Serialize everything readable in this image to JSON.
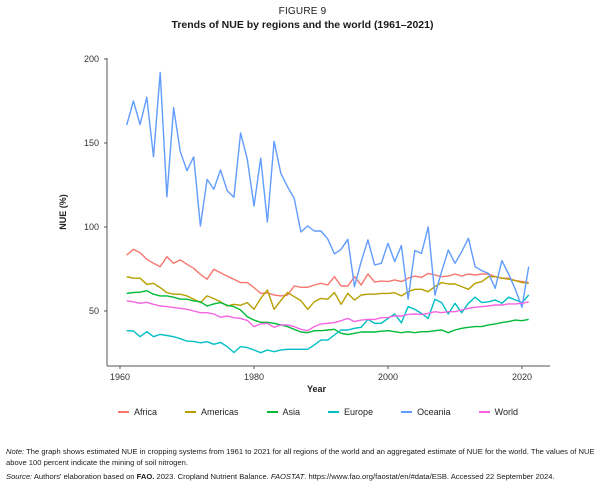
{
  "figure": {
    "label": "FIGURE 9",
    "title": "Trends of NUE by regions and the world (1961–2021)"
  },
  "note": {
    "prefix": "Note:",
    "text": " The graph shows estimated NUE in cropping systems from 1961 to 2021 for all regions of the world and an aggregated estimate of NUE for the world. The values of NUE above 100 percent indicate the mining of soil nitrogen."
  },
  "source": {
    "prefix": "Source:",
    "text1": " Authors' elaboration based on ",
    "bold": "FAO.",
    "text2": " 2023. Cropland Nutrient Balance. ",
    "italic": "FAOSTAT",
    "text3": ". https://www.fao.org/faostat/en/#data/ESB. Accessed 22 September 2024."
  },
  "chart_data": {
    "type": "line",
    "title": "Trends of NUE by regions and the world (1961–2021)",
    "xlabel": "Year",
    "ylabel": "NUE (%)",
    "xlim": [
      1958,
      2024
    ],
    "ylim": [
      17,
      200
    ],
    "xticks": [
      1960,
      1980,
      2000,
      2020
    ],
    "yticks": [
      50,
      100,
      150,
      200
    ],
    "grid": false,
    "legend": "bottom",
    "x": [
      1961,
      1962,
      1963,
      1964,
      1965,
      1966,
      1967,
      1968,
      1969,
      1970,
      1971,
      1972,
      1973,
      1974,
      1975,
      1976,
      1977,
      1978,
      1979,
      1980,
      1981,
      1982,
      1983,
      1984,
      1985,
      1986,
      1987,
      1988,
      1989,
      1990,
      1991,
      1992,
      1993,
      1994,
      1995,
      1996,
      1997,
      1998,
      1999,
      2000,
      2001,
      2002,
      2003,
      2004,
      2005,
      2006,
      2007,
      2008,
      2009,
      2010,
      2011,
      2012,
      2013,
      2014,
      2015,
      2016,
      2017,
      2018,
      2019,
      2020,
      2021
    ],
    "series": [
      {
        "name": "Africa",
        "color": "#f8766d",
        "values": [
          83.3,
          86.7,
          84.7,
          80.8,
          78.4,
          76.4,
          82.3,
          78.4,
          80.4,
          77.8,
          75.4,
          71.8,
          68.9,
          74.8,
          72.8,
          70.8,
          68.9,
          66.9,
          66.9,
          63.9,
          60.5,
          60.8,
          59.5,
          59,
          59.5,
          64.9,
          64.1,
          64.1,
          65.5,
          66.5,
          65.5,
          70.4,
          64.9,
          64.9,
          70.4,
          65.5,
          72,
          67.2,
          67.8,
          67.5,
          68.5,
          67.5,
          69.5,
          70.8,
          70,
          72.4,
          71.4,
          70.4,
          70.8,
          72,
          70.8,
          72,
          71.4,
          72,
          72,
          70.4,
          69.5,
          69.5,
          68.1,
          67.5,
          66.9
        ]
      },
      {
        "name": "Americas",
        "color": "#b79f00",
        "values": [
          70.4,
          69.5,
          69.5,
          65.9,
          66.5,
          63.9,
          60.9,
          60,
          60,
          59,
          57,
          55,
          59,
          57.4,
          55.5,
          53,
          54,
          53.4,
          55,
          51,
          57.5,
          62.5,
          51,
          56.2,
          61,
          58.5,
          56.2,
          51,
          55.5,
          57.5,
          57,
          61,
          54,
          60.5,
          56.5,
          59.5,
          60,
          60,
          60.5,
          60.5,
          60.9,
          59,
          61.5,
          62.9,
          62.9,
          61.5,
          64.5,
          66.9,
          66.1,
          66.1,
          64.5,
          62.9,
          66.5,
          67.5,
          70.4,
          70.4,
          69.5,
          68.9,
          68.1,
          66.9,
          66.5
        ]
      },
      {
        "name": "Asia",
        "color": "#00ba38",
        "values": [
          60.5,
          61,
          61.2,
          62.1,
          60,
          59,
          59,
          58.2,
          57,
          57,
          56,
          55.5,
          53,
          54.2,
          55,
          53.4,
          52.6,
          50.6,
          46.6,
          44.6,
          43.3,
          43.3,
          42.7,
          41.7,
          40.7,
          39.1,
          37.5,
          37.1,
          38.3,
          38.3,
          38.7,
          39.1,
          36.7,
          36,
          36.7,
          37.5,
          37.5,
          37.5,
          38,
          38.3,
          37.7,
          37.1,
          37.7,
          37.1,
          37.7,
          37.7,
          38.3,
          38.7,
          37.1,
          38.7,
          39.7,
          40.3,
          40.7,
          40.7,
          41.7,
          42.3,
          43.1,
          43.7,
          44.6,
          44.2,
          45
        ]
      },
      {
        "name": "Europe",
        "color": "#00bfc4",
        "values": [
          38.3,
          38.1,
          34.7,
          37.7,
          34.7,
          36.1,
          35.4,
          34.7,
          33.5,
          32.1,
          31.9,
          31.1,
          31.7,
          30.2,
          31.3,
          28.8,
          25.3,
          28.8,
          28.2,
          26.8,
          25.2,
          26.8,
          25.8,
          26.8,
          27.2,
          27.2,
          27.2,
          27.2,
          29.8,
          32.7,
          32.7,
          35.7,
          38.7,
          38.7,
          39.7,
          40.3,
          45,
          42.7,
          42.7,
          45.6,
          48.2,
          43,
          52.6,
          51,
          48.6,
          45.6,
          57,
          55,
          48.2,
          54.6,
          49,
          54.6,
          58.2,
          55,
          55.5,
          56.6,
          54.6,
          58.2,
          56.6,
          55,
          59.5
        ]
      },
      {
        "name": "Oceania",
        "color": "#619cff",
        "values": [
          160.7,
          175,
          161,
          177.2,
          141.8,
          192,
          118,
          171,
          144.8,
          133.5,
          141.8,
          100.6,
          128.4,
          122.4,
          134,
          121.6,
          117.7,
          156,
          140.3,
          112.5,
          141,
          103,
          151,
          132,
          124,
          117,
          97,
          100.6,
          97.6,
          97.6,
          93,
          84,
          86.7,
          92.7,
          64.5,
          79.4,
          92.3,
          77.4,
          78.4,
          90.3,
          79.4,
          89,
          57,
          86,
          84.3,
          100,
          59.5,
          73.4,
          86.3,
          78.4,
          85.3,
          93.3,
          76.4,
          74,
          72.4,
          63.5,
          80,
          72,
          63,
          52.2,
          76.4
        ]
      },
      {
        "name": "World",
        "color": "#f564e3",
        "values": [
          56,
          55.5,
          54.6,
          55.2,
          54,
          53,
          52.6,
          52,
          51.6,
          51,
          50,
          49,
          49,
          48.2,
          46.3,
          47,
          46,
          45.6,
          44.4,
          40.7,
          42.3,
          42.7,
          40.3,
          41.7,
          41.7,
          40.7,
          39.1,
          38.3,
          40.7,
          42.3,
          42.7,
          43.1,
          44.2,
          45.6,
          43.7,
          44.6,
          45,
          45,
          46,
          46.2,
          47,
          47,
          48,
          48.2,
          48,
          48.6,
          49.6,
          49,
          49.6,
          49.6,
          50.6,
          51.6,
          52.2,
          52.6,
          53,
          53.6,
          53.6,
          54.2,
          54.2,
          54.6,
          55.5
        ]
      }
    ]
  }
}
